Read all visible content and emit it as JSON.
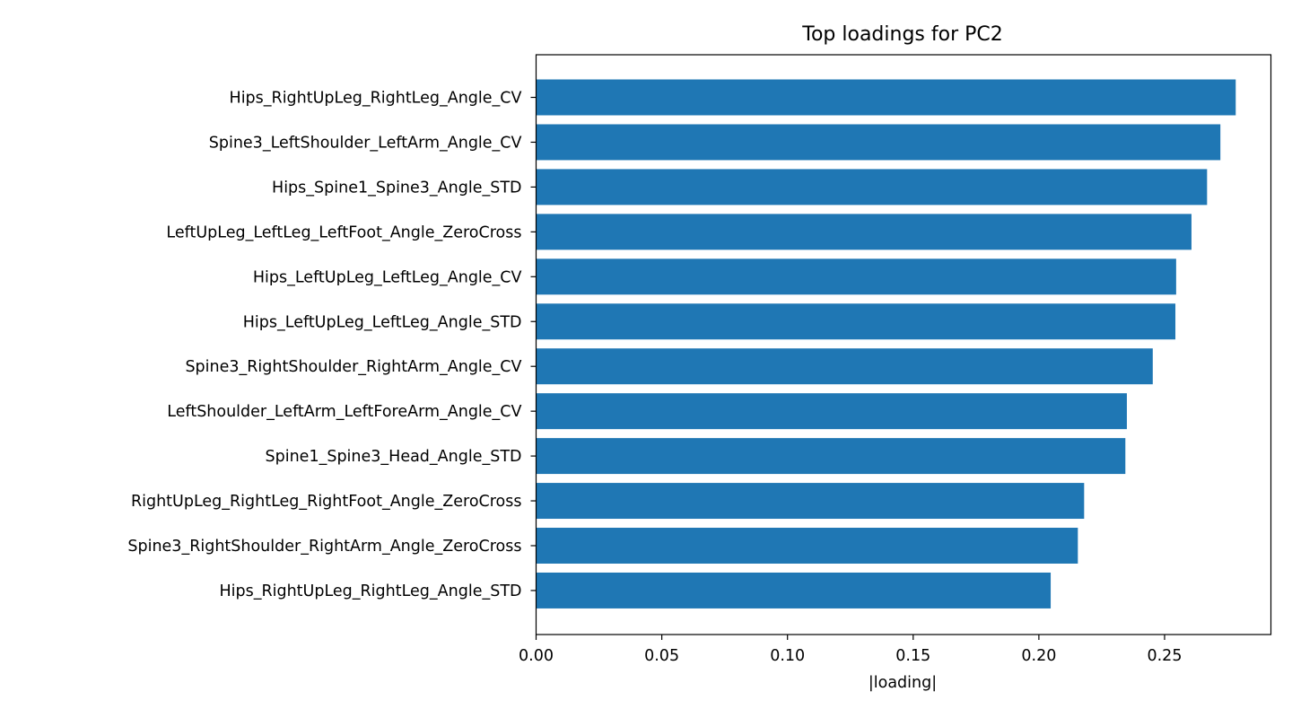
{
  "chart_data": {
    "type": "bar",
    "orientation": "horizontal",
    "title": "Top loadings for PC2",
    "xlabel": "|loading|",
    "ylabel": "",
    "categories": [
      "Hips_RightUpLeg_RightLeg_Angle_CV",
      "Spine3_LeftShoulder_LeftArm_Angle_CV",
      "Hips_Spine1_Spine3_Angle_STD",
      "LeftUpLeg_LeftLeg_LeftFoot_Angle_ZeroCross",
      "Hips_LeftUpLeg_LeftLeg_Angle_CV",
      "Hips_LeftUpLeg_LeftLeg_Angle_STD",
      "Spine3_RightShoulder_RightArm_Angle_CV",
      "LeftShoulder_LeftArm_LeftForeArm_Angle_CV",
      "Spine1_Spine3_Head_Angle_STD",
      "RightUpLeg_RightLeg_RightFoot_Angle_ZeroCross",
      "Spine3_RightShoulder_RightArm_Angle_ZeroCross",
      "Hips_RightUpLeg_RightLeg_Angle_STD"
    ],
    "values": [
      0.2783,
      0.2722,
      0.2669,
      0.2607,
      0.2546,
      0.2543,
      0.2453,
      0.235,
      0.2344,
      0.218,
      0.2155,
      0.2047
    ],
    "xlim": [
      0,
      0.2923
    ],
    "xticks": [
      "0.00",
      "0.05",
      "0.10",
      "0.15",
      "0.20",
      "0.25"
    ],
    "xtick_values": [
      0,
      0.05,
      0.1,
      0.15,
      0.2,
      0.25
    ],
    "grid": false,
    "bar_color": "#1f77b4"
  }
}
